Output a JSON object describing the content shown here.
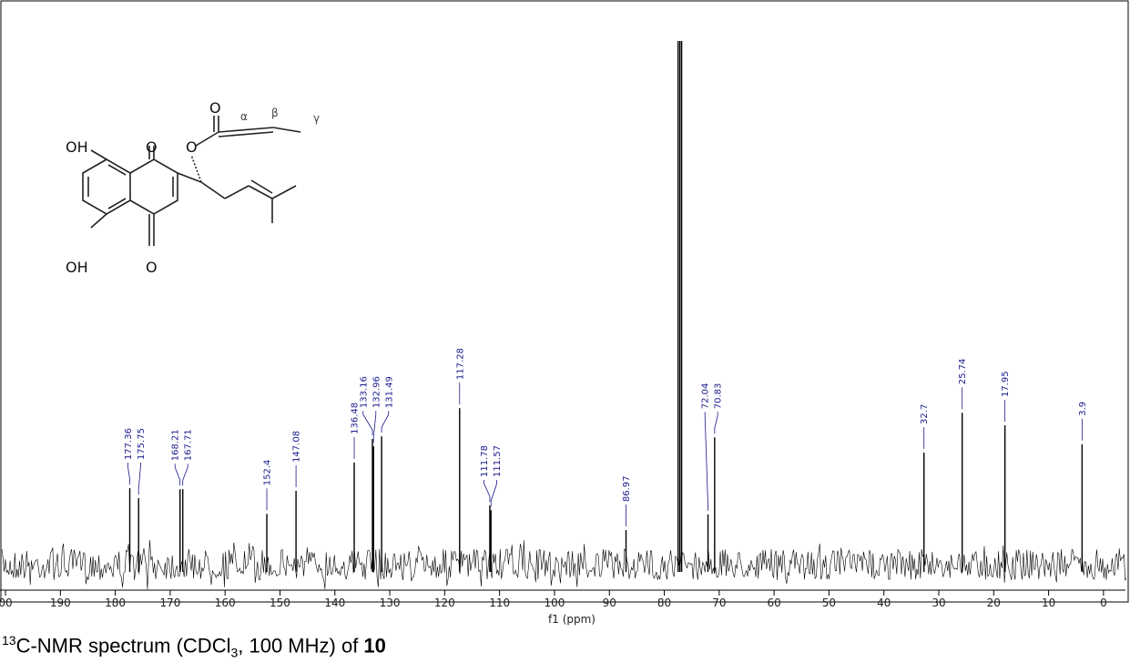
{
  "chart_data": {
    "type": "spectrum",
    "xlabel": "f1 (ppm)",
    "x": [
      177.36,
      175.75,
      168.21,
      167.71,
      152.4,
      147.08,
      136.48,
      133.16,
      132.96,
      131.49,
      117.28,
      111.78,
      111.57,
      86.97,
      77.48,
      77.16,
      76.84,
      72.04,
      70.83,
      32.7,
      25.74,
      17.95,
      3.9
    ],
    "values": [
      14.6,
      12.7,
      14.4,
      14.4,
      9.7,
      14.1,
      19.5,
      24,
      22.6,
      24.5,
      29.9,
      11.3,
      10.4,
      6.6,
      100,
      100,
      100,
      9.6,
      24.3,
      21.4,
      29,
      26.6,
      23
    ],
    "labeled": [
      true,
      true,
      true,
      true,
      true,
      true,
      true,
      true,
      true,
      true,
      true,
      true,
      true,
      true,
      false,
      false,
      false,
      true,
      true,
      true,
      true,
      true,
      true
    ],
    "xlim": [
      201,
      -4
    ],
    "ylim": [
      0,
      100
    ],
    "xticks": [
      {
        "value": 200,
        "label": "00"
      },
      190,
      180,
      170,
      160,
      150,
      140,
      130,
      120,
      110,
      100,
      90,
      80,
      70,
      60,
      50,
      40,
      30,
      20,
      10,
      0
    ],
    "color": "#000000",
    "label_color": "#1a1a8c"
  },
  "structure": {
    "atoms": [
      "OH",
      "O",
      "O",
      "O",
      "OH",
      "O"
    ],
    "greek": [
      "α",
      "β",
      "γ"
    ]
  },
  "caption": {
    "sup": "13",
    "text1": "C-NMR spectrum (CDCl",
    "sub": "3",
    "text2": ", 100 MHz) of ",
    "bold": "10"
  }
}
